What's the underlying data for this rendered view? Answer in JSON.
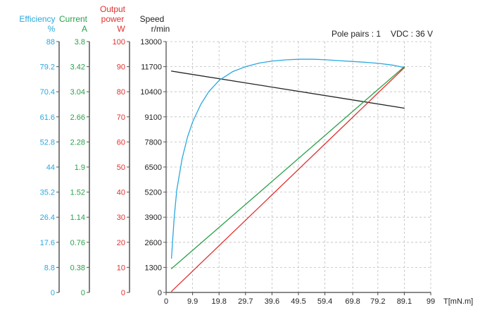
{
  "chart_data": {
    "type": "line",
    "annotations": [
      "Pole pairs : 1",
      "VDC : 36 V"
    ],
    "x_axis": {
      "label": "T[mN.m]",
      "ticks": [
        0,
        9.9,
        19.8,
        29.7,
        39.6,
        49.5,
        59.4,
        69.8,
        79.2,
        89.1,
        99
      ],
      "tick_labels": [
        "0",
        "9.9",
        "19.8",
        "29.7",
        "39.6",
        "49.5",
        "59.4",
        "69.8",
        "79.2",
        "89.1",
        "99"
      ],
      "range": [
        0,
        99
      ],
      "grid": true
    },
    "y_axes": [
      {
        "id": "efficiency",
        "title": "Efficiency",
        "unit": "%",
        "color": "#29a8e0",
        "range": [
          0,
          88
        ],
        "tick_labels": [
          "0",
          "8.8",
          "17.6",
          "26.4",
          "35.2",
          "44",
          "52.8",
          "61.6",
          "70.4",
          "79.2",
          "88"
        ]
      },
      {
        "id": "current",
        "title": "Current",
        "unit": "A",
        "color": "#2aa14b",
        "range": [
          0,
          3.8
        ],
        "tick_labels": [
          "0",
          "0.38",
          "0.76",
          "1.14",
          "1.52",
          "1.9",
          "2.28",
          "2.66",
          "3.04",
          "3.42",
          "3.8"
        ]
      },
      {
        "id": "power",
        "title": "Output\npower",
        "unit": "W",
        "color": "#e0312f",
        "range": [
          0,
          100
        ],
        "tick_labels": [
          "0",
          "10",
          "20",
          "30",
          "40",
          "50",
          "60",
          "70",
          "80",
          "90",
          "100"
        ]
      },
      {
        "id": "speed",
        "title": "Speed",
        "unit": "r/min",
        "color": "#222222",
        "range": [
          0,
          13000
        ],
        "tick_labels": [
          "0",
          "1300",
          "2600",
          "3900",
          "5200",
          "6500",
          "7800",
          "9100",
          "10400",
          "11700",
          "13000"
        ],
        "grid": true
      }
    ],
    "series": [
      {
        "id": "speed",
        "axis": "speed",
        "color": "#222222",
        "x": [
          2,
          89.1
        ],
        "y": [
          11470,
          9550
        ]
      },
      {
        "id": "efficiency",
        "axis": "efficiency",
        "color": "#29a8e0",
        "x": [
          2,
          3,
          4,
          6,
          8,
          10,
          13,
          16,
          20,
          25,
          30,
          35,
          40,
          45,
          50,
          55,
          60,
          65,
          70,
          75,
          80,
          85,
          89.1
        ],
        "y": [
          12,
          26,
          36,
          47,
          54.5,
          60,
          66,
          70.5,
          74.5,
          77.5,
          79.3,
          80.5,
          81.2,
          81.6,
          81.8,
          81.8,
          81.6,
          81.3,
          81,
          80.7,
          80.3,
          79.7,
          78.9
        ]
      },
      {
        "id": "current",
        "axis": "current",
        "color": "#2aa14b",
        "x": [
          2,
          89.1
        ],
        "y": [
          0.36,
          3.42
        ]
      },
      {
        "id": "power",
        "axis": "power",
        "color": "#e0312f",
        "x": [
          2,
          89.1
        ],
        "y": [
          0.4,
          89.6
        ]
      }
    ]
  }
}
